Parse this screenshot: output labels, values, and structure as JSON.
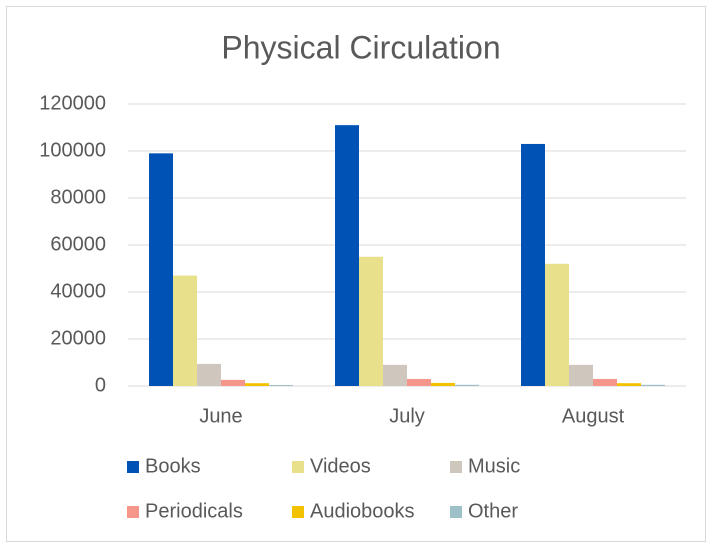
{
  "chart_data": {
    "type": "bar",
    "title": "Physical Circulation",
    "categories": [
      "June",
      "July",
      "August"
    ],
    "series": [
      {
        "name": "Books",
        "color": "#0052b4",
        "values": [
          99000,
          111000,
          103000
        ]
      },
      {
        "name": "Videos",
        "color": "#e8e08a",
        "values": [
          47000,
          55000,
          52000
        ]
      },
      {
        "name": "Music",
        "color": "#cfc6bd",
        "values": [
          9400,
          9000,
          9000
        ]
      },
      {
        "name": "Periodicals",
        "color": "#f4968a",
        "values": [
          2600,
          3000,
          3000
        ]
      },
      {
        "name": "Audiobooks",
        "color": "#f2c200",
        "values": [
          1200,
          1300,
          1200
        ]
      },
      {
        "name": "Other",
        "color": "#9dbfc8",
        "values": [
          400,
          500,
          500
        ]
      }
    ],
    "ylim": [
      0,
      120000
    ],
    "yticks": [
      0,
      20000,
      40000,
      60000,
      80000,
      100000,
      120000
    ],
    "grid": true,
    "legend": "bottom"
  }
}
